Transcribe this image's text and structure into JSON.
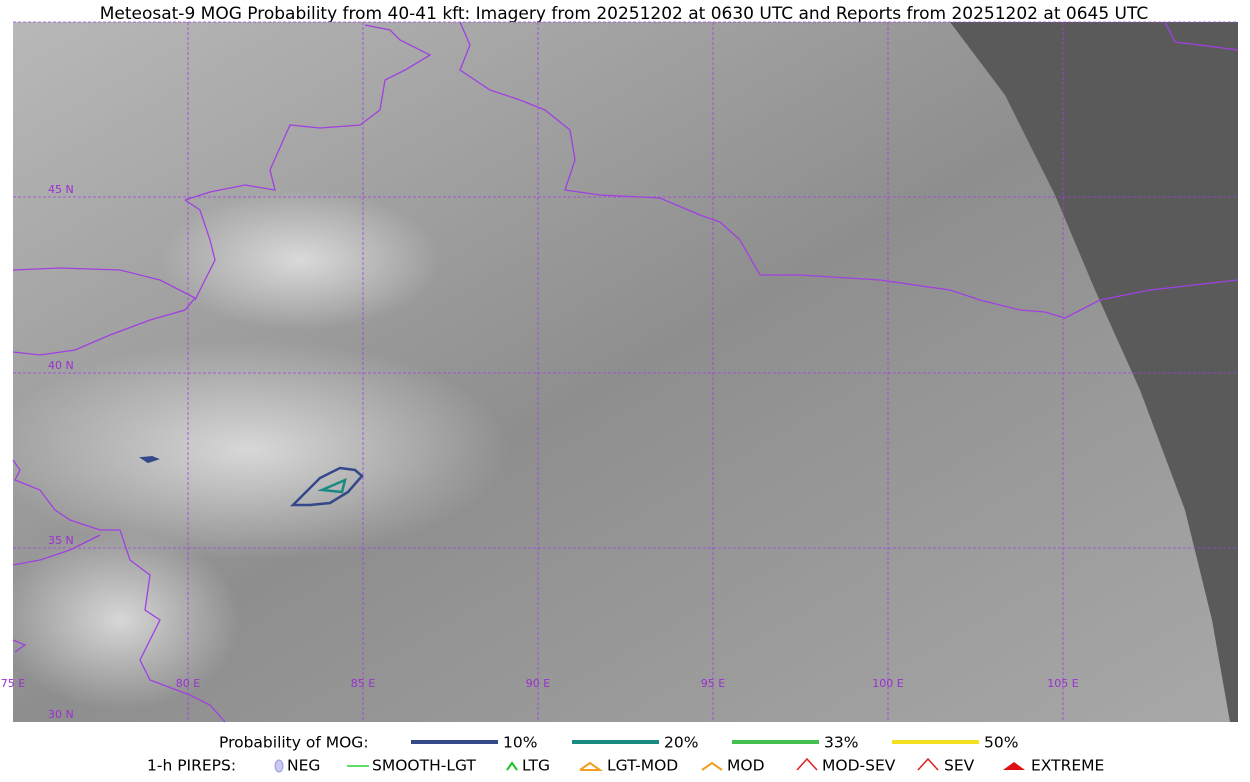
{
  "title": "Meteosat-9 MOG Probability from 40-41 kft: Imagery from 20251202 at 0630 UTC and Reports from 20251202 at 0645 UTC",
  "map": {
    "lat_labels": [
      "45 N",
      "40 N",
      "35 N",
      "30 N"
    ],
    "lon_labels": [
      "75 E",
      "80 E",
      "85 E",
      "90 E",
      "95 E",
      "100 E",
      "105 E"
    ]
  },
  "legend": {
    "mog_title": "Probability of MOG:",
    "mog_items": [
      {
        "label": "10%",
        "color": "#34488a"
      },
      {
        "label": "20%",
        "color": "#1a8a80"
      },
      {
        "label": "33%",
        "color": "#45c050"
      },
      {
        "label": "50%",
        "color": "#f5e020"
      }
    ],
    "pireps_title": "1-h PIREPS:",
    "pireps_items": [
      "NEG",
      "SMOOTH-LGT",
      "LTG",
      "LGT-MOD",
      "MOD",
      "MOD-SEV",
      "SEV",
      "EXTREME"
    ]
  }
}
